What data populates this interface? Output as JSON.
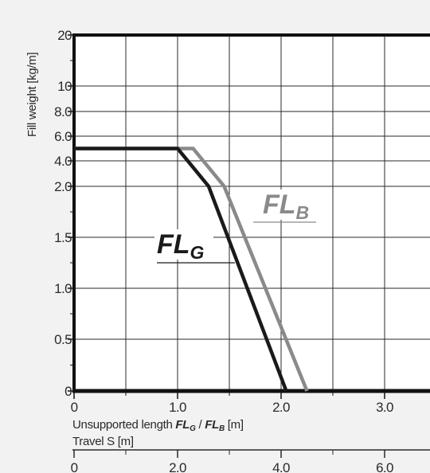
{
  "chart_data": {
    "type": "line",
    "ylabel": "Fill weight [kg/m]",
    "xlabel_parts": [
      "Unsupported length ",
      "FL",
      "G",
      " / ",
      "FL",
      "B",
      " [m]"
    ],
    "x2label": "Travel S [m]",
    "x_ticks": [
      "0",
      "1.0",
      "2.0",
      "3.0"
    ],
    "x_tick_values": [
      0,
      1.0,
      2.0,
      3.0
    ],
    "x2_ticks": [
      "0",
      "2.0",
      "4.0",
      "6.0"
    ],
    "x2_tick_values": [
      0,
      2.0,
      4.0,
      6.0
    ],
    "y_ticks": [
      "0",
      "0.5",
      "1.0",
      "1.5",
      "2.0",
      "4.0",
      "6.0",
      "8.0",
      "10",
      "20"
    ],
    "y_tick_values": [
      0,
      0.5,
      1.0,
      1.5,
      2.0,
      4.0,
      6.0,
      8.0,
      10,
      20
    ],
    "grid": true,
    "series": [
      {
        "name_main": "FL",
        "name_sub": "G",
        "color": "#1a1a1a",
        "points": [
          [
            0,
            5.0
          ],
          [
            1.0,
            5.0
          ],
          [
            1.3,
            2.0
          ],
          [
            2.05,
            0
          ]
        ]
      },
      {
        "name_main": "FL",
        "name_sub": "B",
        "color": "#8a8a8a",
        "points": [
          [
            0,
            5.0
          ],
          [
            1.15,
            5.0
          ],
          [
            1.45,
            2.0
          ],
          [
            2.25,
            0
          ]
        ]
      }
    ]
  }
}
